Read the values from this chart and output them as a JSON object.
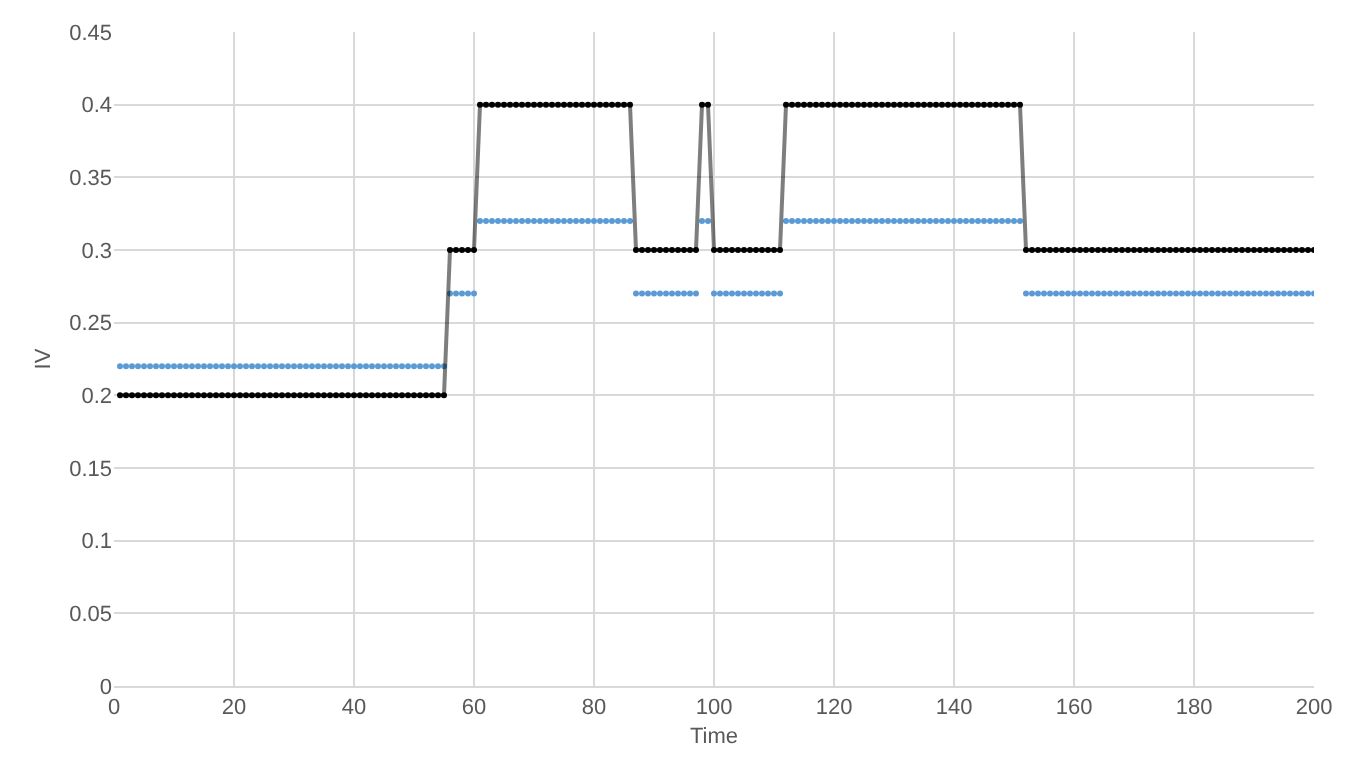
{
  "chart_data": {
    "type": "line",
    "xlabel": "Time",
    "ylabel": "IV",
    "xlim": [
      0,
      200
    ],
    "xticks": [
      0,
      20,
      40,
      60,
      80,
      100,
      120,
      140,
      160,
      180,
      200
    ],
    "ylim": [
      0,
      0.45
    ],
    "yticks": [
      0,
      0.05,
      0.1,
      0.15,
      0.2,
      0.25,
      0.3,
      0.35,
      0.4,
      0.45
    ],
    "grid": true,
    "legend": false,
    "marker": "circle",
    "line_style": "solid",
    "x": [
      1,
      2,
      3,
      4,
      5,
      6,
      7,
      8,
      9,
      10,
      11,
      12,
      13,
      14,
      15,
      16,
      17,
      18,
      19,
      20,
      21,
      22,
      23,
      24,
      25,
      26,
      27,
      28,
      29,
      30,
      31,
      32,
      33,
      34,
      35,
      36,
      37,
      38,
      39,
      40,
      41,
      42,
      43,
      44,
      45,
      46,
      47,
      48,
      49,
      50,
      51,
      52,
      53,
      54,
      55,
      56,
      57,
      58,
      59,
      60,
      61,
      62,
      63,
      64,
      65,
      66,
      67,
      68,
      69,
      70,
      71,
      72,
      73,
      74,
      75,
      76,
      77,
      78,
      79,
      80,
      81,
      82,
      83,
      84,
      85,
      86,
      87,
      88,
      89,
      90,
      91,
      92,
      93,
      94,
      95,
      96,
      97,
      98,
      99,
      100,
      101,
      102,
      103,
      104,
      105,
      106,
      107,
      108,
      109,
      110,
      111,
      112,
      113,
      114,
      115,
      116,
      117,
      118,
      119,
      120,
      121,
      122,
      123,
      124,
      125,
      126,
      127,
      128,
      129,
      130,
      131,
      132,
      133,
      134,
      135,
      136,
      137,
      138,
      139,
      140,
      141,
      142,
      143,
      144,
      145,
      146,
      147,
      148,
      149,
      150,
      151,
      152,
      153,
      154,
      155,
      156,
      157,
      158,
      159,
      160,
      161,
      162,
      163,
      164,
      165,
      166,
      167,
      168,
      169,
      170,
      171,
      172,
      173,
      174,
      175,
      176,
      177,
      178,
      179,
      180,
      181,
      182,
      183,
      184,
      185,
      186,
      187,
      188,
      189,
      190,
      191,
      192,
      193,
      194,
      195,
      196,
      197,
      198,
      199,
      200
    ],
    "series": [
      {
        "type": "scatter",
        "color": "#5b9bd5",
        "values": [
          0.22,
          0.22,
          0.22,
          0.22,
          0.22,
          0.22,
          0.22,
          0.22,
          0.22,
          0.22,
          0.22,
          0.22,
          0.22,
          0.22,
          0.22,
          0.22,
          0.22,
          0.22,
          0.22,
          0.22,
          0.22,
          0.22,
          0.22,
          0.22,
          0.22,
          0.22,
          0.22,
          0.22,
          0.22,
          0.22,
          0.22,
          0.22,
          0.22,
          0.22,
          0.22,
          0.22,
          0.22,
          0.22,
          0.22,
          0.22,
          0.22,
          0.22,
          0.22,
          0.22,
          0.22,
          0.22,
          0.22,
          0.22,
          0.22,
          0.22,
          0.22,
          0.22,
          0.22,
          0.22,
          0.22,
          0.27,
          0.27,
          0.27,
          0.27,
          0.27,
          0.32,
          0.32,
          0.32,
          0.32,
          0.32,
          0.32,
          0.32,
          0.32,
          0.32,
          0.32,
          0.32,
          0.32,
          0.32,
          0.32,
          0.32,
          0.32,
          0.32,
          0.32,
          0.32,
          0.32,
          0.32,
          0.32,
          0.32,
          0.32,
          0.32,
          0.32,
          0.27,
          0.27,
          0.27,
          0.27,
          0.27,
          0.27,
          0.27,
          0.27,
          0.27,
          0.27,
          0.27,
          0.32,
          0.32,
          0.27,
          0.27,
          0.27,
          0.27,
          0.27,
          0.27,
          0.27,
          0.27,
          0.27,
          0.27,
          0.27,
          0.27,
          0.32,
          0.32,
          0.32,
          0.32,
          0.32,
          0.32,
          0.32,
          0.32,
          0.32,
          0.32,
          0.32,
          0.32,
          0.32,
          0.32,
          0.32,
          0.32,
          0.32,
          0.32,
          0.32,
          0.32,
          0.32,
          0.32,
          0.32,
          0.32,
          0.32,
          0.32,
          0.32,
          0.32,
          0.32,
          0.32,
          0.32,
          0.32,
          0.32,
          0.32,
          0.32,
          0.32,
          0.32,
          0.32,
          0.32,
          0.32,
          0.27,
          0.27,
          0.27,
          0.27,
          0.27,
          0.27,
          0.27,
          0.27,
          0.27,
          0.27,
          0.27,
          0.27,
          0.27,
          0.27,
          0.27,
          0.27,
          0.27,
          0.27,
          0.27,
          0.27,
          0.27,
          0.27,
          0.27,
          0.27,
          0.27,
          0.27,
          0.27,
          0.27,
          0.27,
          0.27,
          0.27,
          0.27,
          0.27,
          0.27,
          0.27,
          0.27,
          0.27,
          0.27,
          0.27,
          0.27,
          0.27,
          0.27,
          0.27,
          0.27,
          0.27,
          0.27,
          0.27,
          0.27,
          0.27
        ]
      },
      {
        "color": "#000000",
        "values": [
          0.2,
          0.2,
          0.2,
          0.2,
          0.2,
          0.2,
          0.2,
          0.2,
          0.2,
          0.2,
          0.2,
          0.2,
          0.2,
          0.2,
          0.2,
          0.2,
          0.2,
          0.2,
          0.2,
          0.2,
          0.2,
          0.2,
          0.2,
          0.2,
          0.2,
          0.2,
          0.2,
          0.2,
          0.2,
          0.2,
          0.2,
          0.2,
          0.2,
          0.2,
          0.2,
          0.2,
          0.2,
          0.2,
          0.2,
          0.2,
          0.2,
          0.2,
          0.2,
          0.2,
          0.2,
          0.2,
          0.2,
          0.2,
          0.2,
          0.2,
          0.2,
          0.2,
          0.2,
          0.2,
          0.2,
          0.3,
          0.3,
          0.3,
          0.3,
          0.3,
          0.4,
          0.4,
          0.4,
          0.4,
          0.4,
          0.4,
          0.4,
          0.4,
          0.4,
          0.4,
          0.4,
          0.4,
          0.4,
          0.4,
          0.4,
          0.4,
          0.4,
          0.4,
          0.4,
          0.4,
          0.4,
          0.4,
          0.4,
          0.4,
          0.4,
          0.4,
          0.3,
          0.3,
          0.3,
          0.3,
          0.3,
          0.3,
          0.3,
          0.3,
          0.3,
          0.3,
          0.3,
          0.4,
          0.4,
          0.3,
          0.3,
          0.3,
          0.3,
          0.3,
          0.3,
          0.3,
          0.3,
          0.3,
          0.3,
          0.3,
          0.3,
          0.4,
          0.4,
          0.4,
          0.4,
          0.4,
          0.4,
          0.4,
          0.4,
          0.4,
          0.4,
          0.4,
          0.4,
          0.4,
          0.4,
          0.4,
          0.4,
          0.4,
          0.4,
          0.4,
          0.4,
          0.4,
          0.4,
          0.4,
          0.4,
          0.4,
          0.4,
          0.4,
          0.4,
          0.4,
          0.4,
          0.4,
          0.4,
          0.4,
          0.4,
          0.4,
          0.4,
          0.4,
          0.4,
          0.4,
          0.4,
          0.3,
          0.3,
          0.3,
          0.3,
          0.3,
          0.3,
          0.3,
          0.3,
          0.3,
          0.3,
          0.3,
          0.3,
          0.3,
          0.3,
          0.3,
          0.3,
          0.3,
          0.3,
          0.3,
          0.3,
          0.3,
          0.3,
          0.3,
          0.3,
          0.3,
          0.3,
          0.3,
          0.3,
          0.3,
          0.3,
          0.3,
          0.3,
          0.3,
          0.3,
          0.3,
          0.3,
          0.3,
          0.3,
          0.3,
          0.3,
          0.3,
          0.3,
          0.3,
          0.3,
          0.3,
          0.3,
          0.3,
          0.3,
          0.3
        ]
      }
    ]
  }
}
